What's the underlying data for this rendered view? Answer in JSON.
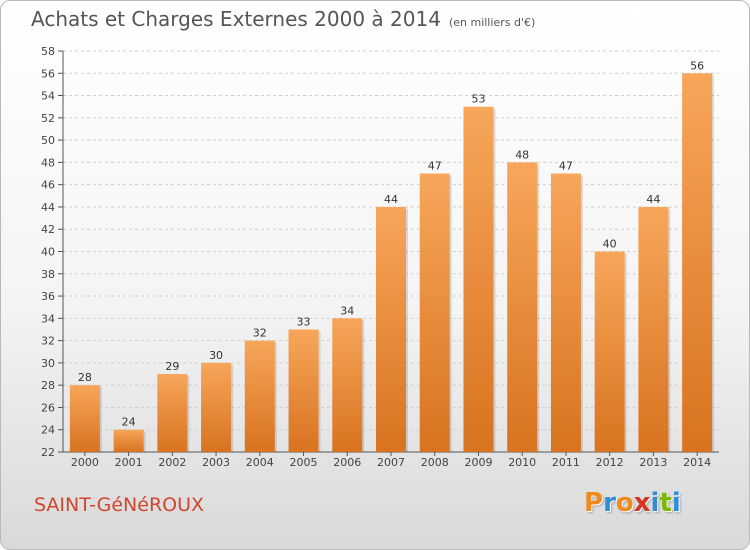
{
  "header": {
    "title": "Achats et Charges Externes 2000 à 2014",
    "subtitle": "(en milliers d'€)"
  },
  "footer": {
    "city": "SAINT-GéNéROUX"
  },
  "logo": {
    "letters": [
      "P",
      "r",
      "o",
      "x",
      "i",
      "t",
      "i"
    ],
    "colors": [
      "#f08a1c",
      "#2e8fd6",
      "#f08a1c",
      "#d9331f",
      "#2e8fd6",
      "#7ab800",
      "#2e8fd6"
    ]
  },
  "colors": {
    "bar_light": "#f7a65a",
    "bar_dark": "#d8731f",
    "grid": "#cfcfcf",
    "axis": "#555555"
  },
  "chart_data": {
    "type": "bar",
    "title": "Achats et Charges Externes 2000 à 2014",
    "subtitle": "(en milliers d'€)",
    "categories": [
      "2000",
      "2001",
      "2002",
      "2003",
      "2004",
      "2005",
      "2006",
      "2007",
      "2008",
      "2009",
      "2010",
      "2011",
      "2012",
      "2013",
      "2014"
    ],
    "values": [
      28,
      24,
      29,
      30,
      32,
      33,
      34,
      44,
      47,
      53,
      48,
      47,
      40,
      44,
      56
    ],
    "ylim": [
      22,
      58
    ],
    "yticks": [
      22,
      24,
      26,
      28,
      30,
      32,
      34,
      36,
      38,
      40,
      42,
      44,
      46,
      48,
      50,
      52,
      54,
      56,
      58
    ],
    "grid": true,
    "xlabel": "",
    "ylabel": ""
  }
}
